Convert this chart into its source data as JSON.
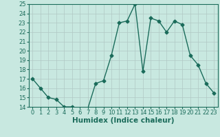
{
  "x": [
    0,
    1,
    2,
    3,
    4,
    5,
    6,
    7,
    8,
    9,
    10,
    11,
    12,
    13,
    14,
    15,
    16,
    17,
    18,
    19,
    20,
    21,
    22,
    23
  ],
  "y": [
    17,
    16,
    15,
    14.8,
    14,
    14,
    13.8,
    13.8,
    16.5,
    16.8,
    19.5,
    23,
    23.2,
    25,
    17.8,
    23.5,
    23.2,
    22,
    23.2,
    22.8,
    19.5,
    18.5,
    16.5,
    15.5
  ],
  "xlabel": "Humidex (Indice chaleur)",
  "ylim": [
    14,
    25
  ],
  "xlim": [
    -0.5,
    23.5
  ],
  "yticks": [
    14,
    15,
    16,
    17,
    18,
    19,
    20,
    21,
    22,
    23,
    24,
    25
  ],
  "xticks": [
    0,
    1,
    2,
    3,
    4,
    5,
    6,
    7,
    8,
    9,
    10,
    11,
    12,
    13,
    14,
    15,
    16,
    17,
    18,
    19,
    20,
    21,
    22,
    23
  ],
  "line_color": "#1a6b5a",
  "bg_color": "#c8e8e0",
  "grid_color": "#b0c8c4",
  "marker": "D",
  "marker_size": 2.5,
  "linewidth": 1.0,
  "tick_fontsize": 6.0,
  "xlabel_fontsize": 7.5
}
